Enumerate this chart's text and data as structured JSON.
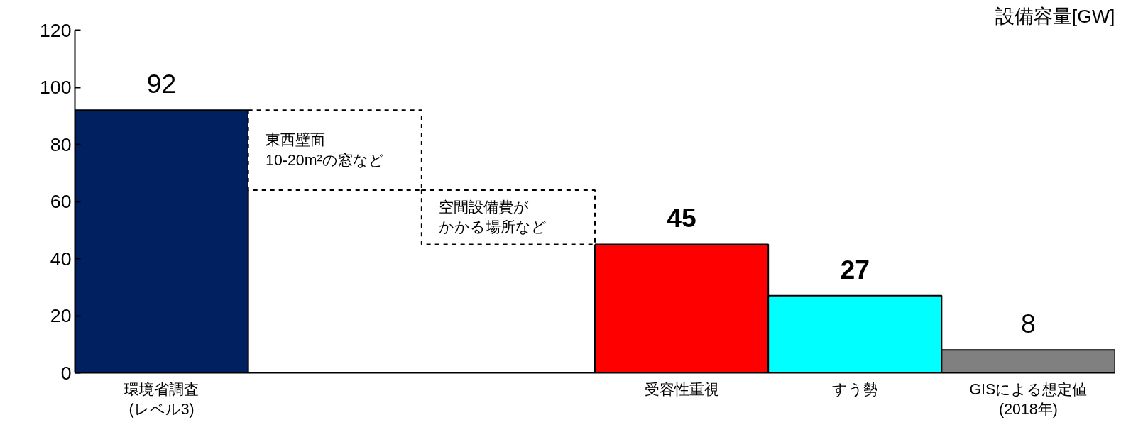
{
  "chart_data": {
    "type": "bar",
    "ylabel": "設備容量[GW]",
    "categories": [
      "環境省調査\n(レベル3)",
      null,
      null,
      "受容性重視",
      "すう勢",
      "GISによる想定値\n(2018年)"
    ],
    "series": [
      {
        "colors": [
          "#002060",
          null,
          null,
          "#ff0000",
          "#00ffff",
          "#808080"
        ],
        "values": [
          92,
          null,
          null,
          45,
          27,
          8
        ],
        "value_labels": [
          "92",
          null,
          null,
          "45",
          "27",
          "8"
        ]
      },
      {
        "color": "#ffffff",
        "line_style": "dashed",
        "values": [
          null,
          28,
          19,
          null,
          null,
          null
        ],
        "base": [
          null,
          64,
          45,
          null,
          null,
          null
        ]
      }
    ],
    "annotations": [
      "東西壁面",
      "10-20m²の窓など",
      "空間設備費が",
      "かかる場所など"
    ],
    "ylim": [
      0,
      120
    ],
    "yticks": [
      0,
      20,
      40,
      60,
      80,
      100,
      120
    ],
    "grid": false
  }
}
